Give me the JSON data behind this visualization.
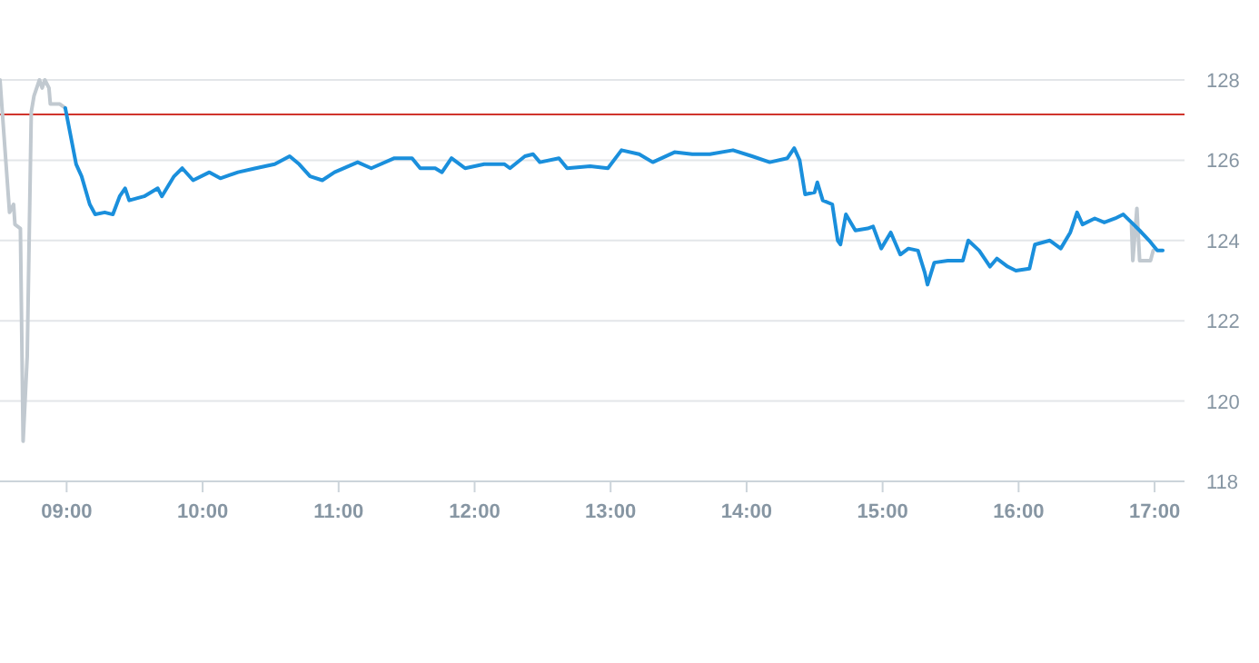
{
  "chart_data": {
    "type": "line",
    "xlim": [
      8.51,
      17.22
    ],
    "ylim": [
      118,
      128
    ],
    "xticks": [
      {
        "value": 9,
        "label": "09:00"
      },
      {
        "value": 10,
        "label": "10:00"
      },
      {
        "value": 11,
        "label": "11:00"
      },
      {
        "value": 12,
        "label": "12:00"
      },
      {
        "value": 13,
        "label": "13:00"
      },
      {
        "value": 14,
        "label": "14:00"
      },
      {
        "value": 15,
        "label": "15:00"
      },
      {
        "value": 16,
        "label": "16:00"
      },
      {
        "value": 17,
        "label": "17:00"
      }
    ],
    "yticks": [
      118,
      120,
      122,
      124,
      126,
      128
    ],
    "grid": "y",
    "line_style": "solid",
    "marker": "none",
    "ref_lines": [
      {
        "axis": "y",
        "value": 127.14,
        "color": "#d0342c"
      }
    ],
    "series": [
      {
        "color": "#c1c9d0",
        "x": [
          8.51,
          8.58,
          8.61,
          8.62,
          8.66,
          8.68,
          8.71,
          8.74,
          8.76,
          8.8,
          8.82,
          8.84,
          8.87,
          8.88,
          8.95,
          8.99
        ],
        "values": [
          128,
          124.7,
          124.9,
          124.4,
          124.3,
          119,
          121.1,
          127.2,
          127.6,
          128,
          127.8,
          128,
          127.8,
          127.4,
          127.4,
          127.3
        ]
      },
      {
        "color": "#c1c9d0",
        "x": [
          16.83,
          16.84,
          16.87,
          16.89,
          16.97,
          16.99
        ],
        "values": [
          124.4,
          123.5,
          124.8,
          123.5,
          123.5,
          123.75
        ]
      },
      {
        "color": "#1a8fdc",
        "x": [
          8.99,
          9.07,
          9.11,
          9.17,
          9.21,
          9.28,
          9.34,
          9.39,
          9.43,
          9.46,
          9.57,
          9.67,
          9.7,
          9.79,
          9.85,
          9.93,
          10.05,
          10.13,
          10.26,
          10.39,
          10.53,
          10.64,
          10.71,
          10.79,
          10.88,
          10.97,
          11.14,
          11.24,
          11.41,
          11.54,
          11.6,
          11.71,
          11.76,
          11.83,
          11.93,
          12.07,
          12.22,
          12.26,
          12.37,
          12.43,
          12.48,
          12.62,
          12.68,
          12.85,
          12.98,
          13.08,
          13.21,
          13.31,
          13.47,
          13.6,
          13.73,
          13.9,
          14.04,
          14.17,
          14.3,
          14.35,
          14.39,
          14.43,
          14.5,
          14.52,
          14.56,
          14.63,
          14.67,
          14.69,
          14.73,
          14.8,
          14.89,
          14.93,
          14.99,
          15.06,
          15.13,
          15.19,
          15.26,
          15.31,
          15.33,
          15.38,
          15.48,
          15.59,
          15.63,
          15.71,
          15.79,
          15.84,
          15.92,
          15.98,
          16.08,
          16.12,
          16.23,
          16.31,
          16.38,
          16.43,
          16.47,
          16.56,
          16.63,
          16.71,
          16.77,
          16.83,
          16.89,
          16.96,
          17.02,
          17.06
        ],
        "values": [
          127.3,
          125.9,
          125.6,
          124.9,
          124.65,
          124.7,
          124.65,
          125.1,
          125.3,
          125,
          125.1,
          125.3,
          125.1,
          125.6,
          125.8,
          125.5,
          125.7,
          125.55,
          125.7,
          125.8,
          125.9,
          126.1,
          125.9,
          125.6,
          125.5,
          125.7,
          125.95,
          125.8,
          126.05,
          126.05,
          125.8,
          125.8,
          125.7,
          126.05,
          125.8,
          125.9,
          125.9,
          125.8,
          126.1,
          126.15,
          125.95,
          126.05,
          125.8,
          125.85,
          125.8,
          126.25,
          126.15,
          125.95,
          126.2,
          126.15,
          126.15,
          126.25,
          126.1,
          125.95,
          126.05,
          126.3,
          126,
          125.15,
          125.2,
          125.45,
          125,
          124.9,
          124,
          123.9,
          124.65,
          124.25,
          124.3,
          124.35,
          123.8,
          124.2,
          123.65,
          123.8,
          123.75,
          123.2,
          122.9,
          123.45,
          123.5,
          123.5,
          124,
          123.75,
          123.35,
          123.55,
          123.35,
          123.25,
          123.3,
          123.9,
          124,
          123.8,
          124.2,
          124.7,
          124.4,
          124.55,
          124.45,
          124.55,
          124.65,
          124.45,
          124.25,
          124,
          123.75,
          123.75
        ]
      }
    ]
  }
}
